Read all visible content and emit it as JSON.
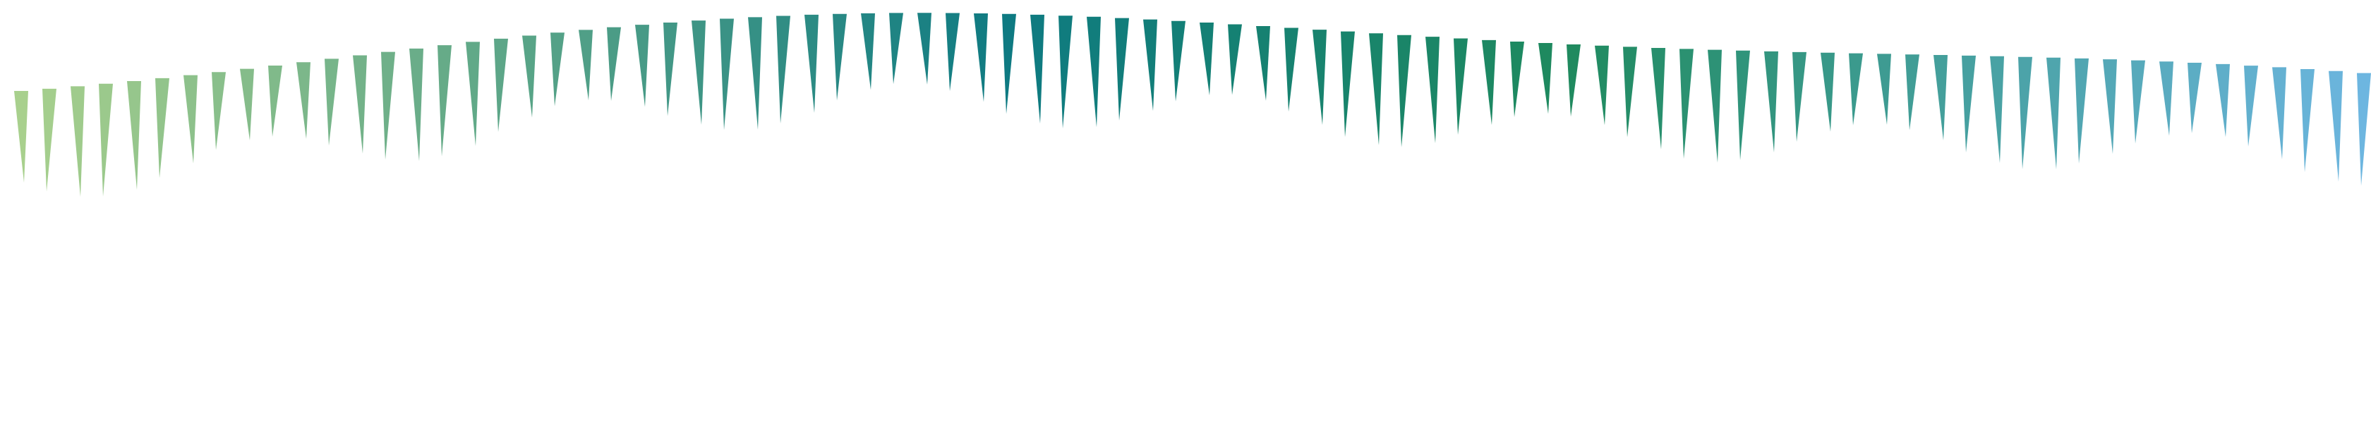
{
  "artwork": {
    "spike_count": 84,
    "colors": {
      "start": "#a8d08d",
      "mid": "#0e7a82",
      "teal_end": "#1f8a5e",
      "blue_end": "#6db6e0"
    }
  }
}
